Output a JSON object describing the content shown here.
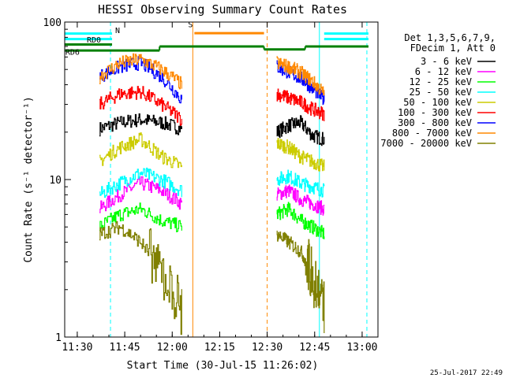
{
  "chart_data": {
    "type": "line",
    "title": "HESSI Observing Summary Count Rates",
    "xlabel": "Start Time (30-Jul-15 11:26:02)",
    "ylabel": "Count Rate (s⁻¹ detector⁻¹)",
    "y_scale": "log",
    "ylim": [
      1,
      100
    ],
    "xlim": [
      "11:26:02",
      "13:05:00"
    ],
    "x_ticks": [
      "11:30",
      "11:45",
      "12:00",
      "12:15",
      "12:30",
      "12:45",
      "13:00"
    ],
    "y_ticks": [
      "1",
      "10",
      "100"
    ],
    "date_stamp": "25-Jul-2017 22:49",
    "legend": {
      "position": "right",
      "header": [
        "Det 1,3,5,6,7,9,",
        "FDecim 1, Att 0"
      ],
      "entries": [
        {
          "label": "3 - 6 keV",
          "color": "#000000"
        },
        {
          "label": "6 - 12 keV",
          "color": "#ff00ff"
        },
        {
          "label": "12 - 25 keV",
          "color": "#00ff00"
        },
        {
          "label": "25 - 50 keV",
          "color": "#00ffff"
        },
        {
          "label": "50 - 100 keV",
          "color": "#cccc00"
        },
        {
          "label": "100 - 300 keV",
          "color": "#ff0000"
        },
        {
          "label": "300 - 800 keV",
          "color": "#0000ff"
        },
        {
          "label": "800 - 7000 keV",
          "color": "#ff8800"
        },
        {
          "label": "7000 - 20000 keV",
          "color": "#808000"
        }
      ]
    },
    "annotations": {
      "N": "N",
      "S": "S",
      "RD0": "RD0",
      "RD6": "RD6"
    },
    "bars": [
      {
        "name": "N",
        "color": "#00ffff",
        "segments": [
          [
            "11:26",
            "11:41"
          ],
          [
            "12:48",
            "13:02"
          ]
        ],
        "value": 78
      },
      {
        "name": "S",
        "color": "#ff8800",
        "segments": [
          [
            "12:07",
            "12:29"
          ]
        ],
        "value": 85
      },
      {
        "name": "RD0",
        "color": "#008000",
        "segments": [
          [
            "11:26",
            "11:41"
          ]
        ],
        "value": 72
      },
      {
        "name": "RD6",
        "color": "#008000",
        "segments": [
          [
            "11:26",
            "11:56"
          ],
          [
            "11:56",
            "12:29"
          ],
          [
            "12:29",
            "12:42"
          ],
          [
            "12:42",
            "13:02"
          ]
        ],
        "values": [
          66,
          70,
          67,
          70
        ]
      }
    ],
    "vlines": [
      {
        "time": "11:26:02",
        "color": "#00ffff",
        "style": "solid"
      },
      {
        "time": "11:40:30",
        "color": "#00ffff",
        "style": "dashed"
      },
      {
        "time": "12:06:30",
        "color": "#ff8800",
        "style": "solid"
      },
      {
        "time": "12:30:00",
        "color": "#ff8800",
        "style": "dashed"
      },
      {
        "time": "12:46:30",
        "color": "#00ffff",
        "style": "solid"
      },
      {
        "time": "13:01:30",
        "color": "#00ffff",
        "style": "dashed"
      }
    ],
    "series": [
      {
        "name": "3 - 6 keV",
        "color": "#000000",
        "segments": [
          {
            "start": "11:37",
            "end": "12:03",
            "level": [
              21,
              23,
              24,
              23,
              21
            ]
          },
          {
            "start": "12:33",
            "end": "12:48",
            "level": [
              20,
              22,
              23,
              19,
              18
            ]
          }
        ]
      },
      {
        "name": "6 - 12 keV",
        "color": "#ff00ff",
        "segments": [
          {
            "start": "11:37",
            "end": "12:03",
            "level": [
              6.5,
              8,
              9.5,
              8.5,
              7
            ]
          },
          {
            "start": "12:33",
            "end": "12:48",
            "level": [
              8,
              8.5,
              7.5,
              7,
              6.5
            ]
          }
        ]
      },
      {
        "name": "12 - 25 keV",
        "color": "#00ff00",
        "segments": [
          {
            "start": "11:37",
            "end": "12:03",
            "level": [
              5,
              6,
              6.5,
              5.5,
              5
            ]
          },
          {
            "start": "12:33",
            "end": "12:48",
            "level": [
              6,
              6.5,
              5.5,
              5,
              4.5
            ]
          }
        ]
      },
      {
        "name": "25 - 50 keV",
        "color": "#00ffff",
        "segments": [
          {
            "start": "11:37",
            "end": "12:03",
            "level": [
              8,
              9.5,
              11,
              10,
              8.5
            ]
          },
          {
            "start": "12:33",
            "end": "12:48",
            "level": [
              10,
              10.5,
              9.5,
              9,
              8.5
            ]
          }
        ]
      },
      {
        "name": "50 - 100 keV",
        "color": "#cccc00",
        "segments": [
          {
            "start": "11:37",
            "end": "12:03",
            "level": [
              13,
              16,
              18,
              14,
              12
            ]
          },
          {
            "start": "12:33",
            "end": "12:48",
            "level": [
              17,
              16,
              14,
              13,
              12
            ]
          }
        ]
      },
      {
        "name": "100 - 300 keV",
        "color": "#ff0000",
        "segments": [
          {
            "start": "11:37",
            "end": "12:03",
            "level": [
              30,
              35,
              36,
              30,
              24
            ]
          },
          {
            "start": "12:33",
            "end": "12:48",
            "level": [
              35,
              33,
              31,
              28,
              26
            ]
          }
        ]
      },
      {
        "name": "300 - 800 keV",
        "color": "#0000ff",
        "segments": [
          {
            "start": "11:37",
            "end": "12:03",
            "level": [
              45,
              52,
              55,
              45,
              32
            ]
          },
          {
            "start": "12:33",
            "end": "12:48",
            "level": [
              52,
              48,
              44,
              38,
              32
            ]
          }
        ]
      },
      {
        "name": "800 - 7000 keV",
        "color": "#ff8800",
        "segments": [
          {
            "start": "11:37",
            "end": "12:03",
            "level": [
              45,
              55,
              58,
              50,
              40
            ]
          },
          {
            "start": "12:33",
            "end": "12:48",
            "level": [
              55,
              52,
              48,
              42,
              35
            ]
          }
        ]
      },
      {
        "name": "7000 - 20000 keV",
        "color": "#808000",
        "segments": [
          {
            "start": "11:37",
            "end": "12:03",
            "level": [
              4.5,
              5,
              4,
              2.5,
              1.5
            ]
          },
          {
            "start": "12:33",
            "end": "12:48",
            "level": [
              4.5,
              4,
              3.5,
              2.5,
              1.5
            ]
          }
        ]
      }
    ]
  }
}
